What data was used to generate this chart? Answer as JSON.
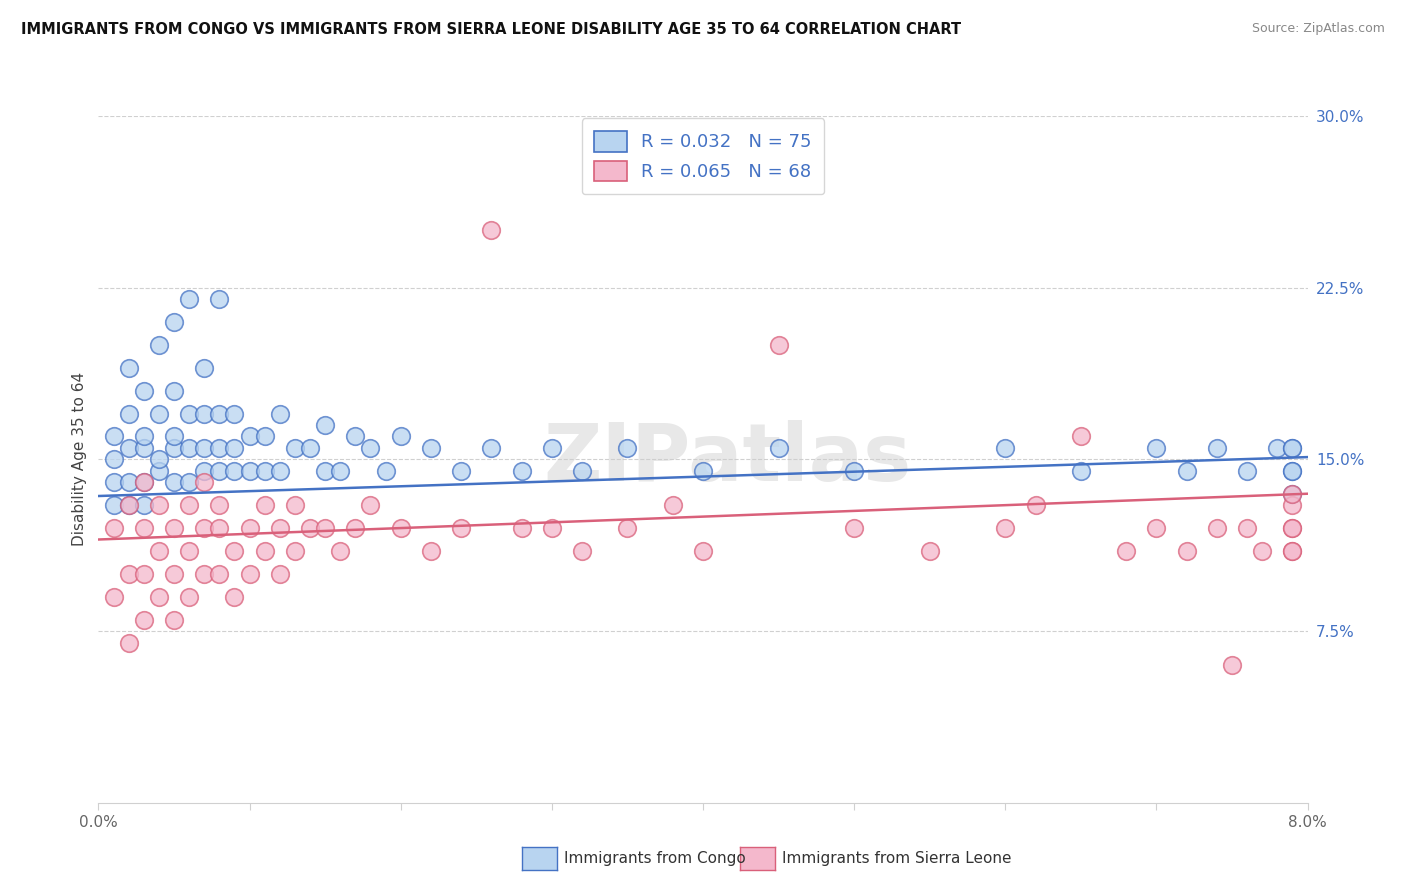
{
  "title": "IMMIGRANTS FROM CONGO VS IMMIGRANTS FROM SIERRA LEONE DISABILITY AGE 35 TO 64 CORRELATION CHART",
  "source": "Source: ZipAtlas.com",
  "xlabel_congo": "Immigrants from Congo",
  "xlabel_sierra": "Immigrants from Sierra Leone",
  "ylabel": "Disability Age 35 to 64",
  "xlim": [
    0.0,
    0.08
  ],
  "ylim": [
    0.0,
    0.3
  ],
  "yticks_right": [
    0.075,
    0.15,
    0.225,
    0.3
  ],
  "ytick_labels_right": [
    "7.5%",
    "15.0%",
    "22.5%",
    "30.0%"
  ],
  "legend_r1": "R = 0.032",
  "legend_n1": "N = 75",
  "legend_r2": "R = 0.065",
  "legend_n2": "N = 68",
  "color_congo_fill": "#b8d4f0",
  "color_sierra_fill": "#f4b8cc",
  "line_color_congo": "#4472c4",
  "line_color_sierra": "#d9607a",
  "watermark": "ZIPatlas",
  "background": "#ffffff",
  "grid_color": "#d0d0d0",
  "tick_label_color": "#666666",
  "title_color": "#111111",
  "source_color": "#888888",
  "right_tick_color": "#4472c4",
  "congo_x": [
    0.001,
    0.001,
    0.001,
    0.001,
    0.002,
    0.002,
    0.002,
    0.002,
    0.002,
    0.003,
    0.003,
    0.003,
    0.003,
    0.003,
    0.004,
    0.004,
    0.004,
    0.004,
    0.005,
    0.005,
    0.005,
    0.005,
    0.005,
    0.006,
    0.006,
    0.006,
    0.006,
    0.007,
    0.007,
    0.007,
    0.007,
    0.008,
    0.008,
    0.008,
    0.008,
    0.009,
    0.009,
    0.009,
    0.01,
    0.01,
    0.011,
    0.011,
    0.012,
    0.012,
    0.013,
    0.014,
    0.015,
    0.015,
    0.016,
    0.017,
    0.018,
    0.019,
    0.02,
    0.022,
    0.024,
    0.026,
    0.028,
    0.03,
    0.032,
    0.035,
    0.04,
    0.045,
    0.05,
    0.06,
    0.065,
    0.07,
    0.072,
    0.074,
    0.076,
    0.078,
    0.079,
    0.079,
    0.079,
    0.079,
    0.079
  ],
  "congo_y": [
    0.14,
    0.15,
    0.16,
    0.13,
    0.14,
    0.155,
    0.17,
    0.13,
    0.19,
    0.14,
    0.155,
    0.16,
    0.18,
    0.13,
    0.145,
    0.15,
    0.17,
    0.2,
    0.14,
    0.155,
    0.16,
    0.18,
    0.21,
    0.14,
    0.155,
    0.17,
    0.22,
    0.145,
    0.155,
    0.17,
    0.19,
    0.145,
    0.155,
    0.17,
    0.22,
    0.145,
    0.155,
    0.17,
    0.145,
    0.16,
    0.145,
    0.16,
    0.145,
    0.17,
    0.155,
    0.155,
    0.145,
    0.165,
    0.145,
    0.16,
    0.155,
    0.145,
    0.16,
    0.155,
    0.145,
    0.155,
    0.145,
    0.155,
    0.145,
    0.155,
    0.145,
    0.155,
    0.145,
    0.155,
    0.145,
    0.155,
    0.145,
    0.155,
    0.145,
    0.155,
    0.145,
    0.155,
    0.145,
    0.155,
    0.135
  ],
  "sierra_x": [
    0.001,
    0.001,
    0.002,
    0.002,
    0.002,
    0.003,
    0.003,
    0.003,
    0.003,
    0.004,
    0.004,
    0.004,
    0.005,
    0.005,
    0.005,
    0.006,
    0.006,
    0.006,
    0.007,
    0.007,
    0.007,
    0.008,
    0.008,
    0.008,
    0.009,
    0.009,
    0.01,
    0.01,
    0.011,
    0.011,
    0.012,
    0.012,
    0.013,
    0.013,
    0.014,
    0.015,
    0.016,
    0.017,
    0.018,
    0.02,
    0.022,
    0.024,
    0.026,
    0.028,
    0.03,
    0.032,
    0.035,
    0.038,
    0.04,
    0.045,
    0.05,
    0.055,
    0.06,
    0.062,
    0.065,
    0.068,
    0.07,
    0.072,
    0.074,
    0.075,
    0.076,
    0.077,
    0.079,
    0.079,
    0.079,
    0.079,
    0.079,
    0.079
  ],
  "sierra_y": [
    0.12,
    0.09,
    0.13,
    0.1,
    0.07,
    0.12,
    0.1,
    0.08,
    0.14,
    0.11,
    0.09,
    0.13,
    0.12,
    0.1,
    0.08,
    0.13,
    0.11,
    0.09,
    0.12,
    0.1,
    0.14,
    0.12,
    0.1,
    0.13,
    0.11,
    0.09,
    0.12,
    0.1,
    0.13,
    0.11,
    0.12,
    0.1,
    0.13,
    0.11,
    0.12,
    0.12,
    0.11,
    0.12,
    0.13,
    0.12,
    0.11,
    0.12,
    0.25,
    0.12,
    0.12,
    0.11,
    0.12,
    0.13,
    0.11,
    0.2,
    0.12,
    0.11,
    0.12,
    0.13,
    0.16,
    0.11,
    0.12,
    0.11,
    0.12,
    0.06,
    0.12,
    0.11,
    0.13,
    0.12,
    0.11,
    0.12,
    0.11,
    0.135
  ]
}
